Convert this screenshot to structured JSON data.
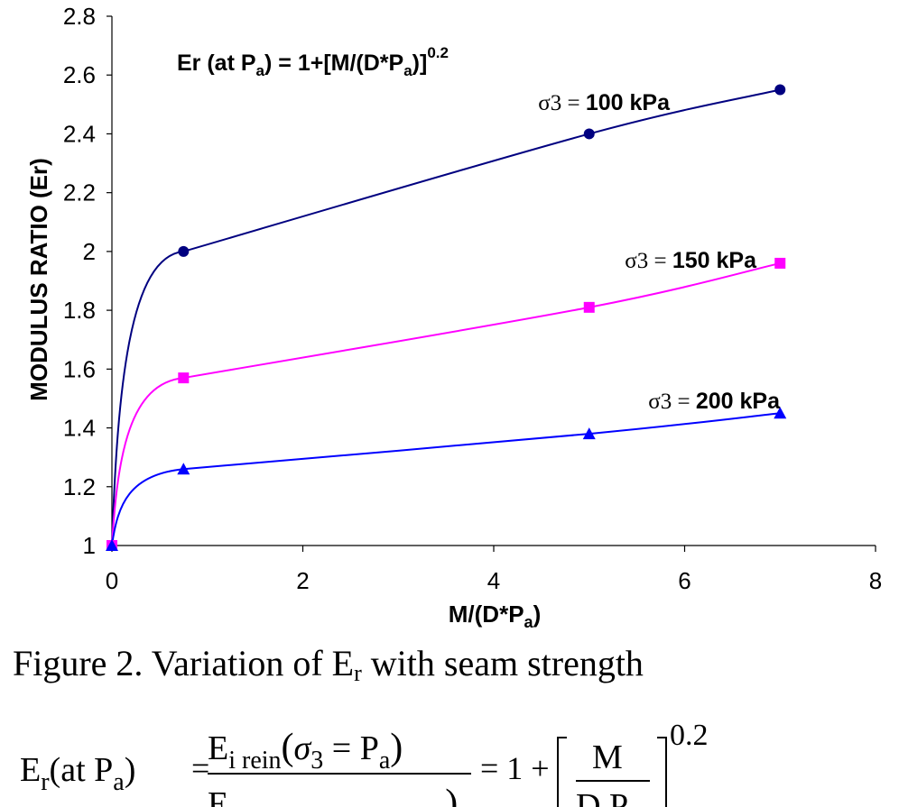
{
  "chart_data": {
    "type": "line",
    "xlim": [
      0,
      8
    ],
    "ylim": [
      1,
      2.8
    ],
    "x_ticks": [
      0,
      2,
      4,
      6,
      8
    ],
    "y_ticks": [
      1,
      1.2,
      1.4,
      1.6,
      1.8,
      2,
      2.2,
      2.4,
      2.6,
      2.8
    ],
    "x_tick_labels": [
      "0",
      "2",
      "4",
      "6",
      "8"
    ],
    "y_tick_labels": [
      "1",
      "1.2",
      "1.4",
      "1.6",
      "1.8",
      "2",
      "2.2",
      "2.4",
      "2.6",
      "2.8"
    ],
    "xlabel": {
      "main": "M/(D*P",
      "sub": "a",
      "tail": ")"
    },
    "ylabel": "MODULUS RATIO (Er)",
    "grid": false,
    "series": [
      {
        "label_prefix": "σ3 = ",
        "label_bold": "100 kPa",
        "color": "#000080",
        "marker": "circle",
        "x": [
          0,
          0.75,
          5,
          7
        ],
        "y": [
          1,
          2.0,
          2.4,
          2.55
        ]
      },
      {
        "label_prefix": "σ3 = ",
        "label_bold": "150 kPa",
        "color": "#ff00ff",
        "marker": "square",
        "x": [
          0,
          0.75,
          5,
          7
        ],
        "y": [
          1,
          1.57,
          1.81,
          1.96
        ]
      },
      {
        "label_prefix": "σ3 = ",
        "label_bold": "200 kPa",
        "color": "#0000ff",
        "marker": "triangle",
        "x": [
          0,
          0.75,
          5,
          7
        ],
        "y": [
          1,
          1.26,
          1.38,
          1.45
        ]
      }
    ],
    "annotation": {
      "a": "Er (at P",
      "b": "a",
      "c": ") = 1+[M/(D*P",
      "d": "a",
      "e": ")]",
      "f": "0.2"
    }
  },
  "caption": {
    "prefix": "Figure 2. Variation of E",
    "sub": "r",
    "suffix": " with seam strength"
  },
  "equation": {
    "lhs_E": "E",
    "lhs_sub": "r",
    "lhs_rest": "(at P",
    "lhs_a": "a",
    "lhs_close": ")",
    "eq1": "=",
    "num_E": "E",
    "num_sub": "i rein",
    "num_open": "(",
    "num_sigma": "σ",
    "num_sigma_sub": "3",
    "num_eq": " = P",
    "num_a": "a",
    "num_close": ")",
    "den_E": "E",
    "den_close": ")",
    "eq2": "= 1 +",
    "frac_num": "M",
    "frac_den": "D P",
    "exp": "0.2"
  }
}
